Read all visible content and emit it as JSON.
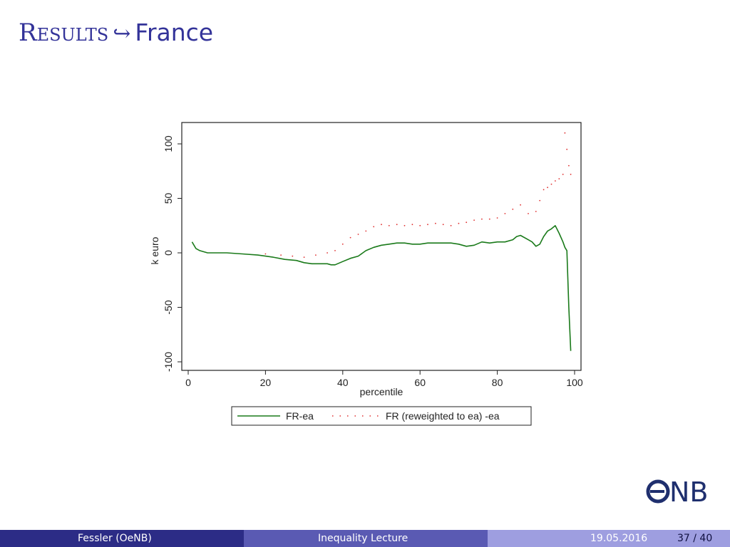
{
  "slide": {
    "title_main": "Results",
    "title_arrow": "↪",
    "title_sub": "France"
  },
  "footer": {
    "author": "Fessler  (OeNB)",
    "talk_title": "Inequality Lecture",
    "date": "19.05.2016",
    "page": "37 / 40"
  },
  "logo": {
    "text": "ONB",
    "icon": "oenb-euro-logo"
  },
  "colors": {
    "title": "#333399",
    "series_solid": "#1a7a1a",
    "series_dotted": "#e03030",
    "footer_dark": "#2c2c86",
    "footer_mid": "#5a5ab3",
    "footer_light": "#9e9ee0"
  },
  "chart_data": {
    "type": "line",
    "xlabel": "percentile",
    "ylabel": "k euro",
    "xlim": [
      0,
      100
    ],
    "ylim": [
      -105,
      115
    ],
    "xticks": [
      0,
      20,
      40,
      60,
      80,
      100
    ],
    "yticks": [
      -100,
      -50,
      0,
      50,
      100
    ],
    "legend_position": "bottom",
    "grid": false,
    "series": [
      {
        "name": "FR-ea",
        "style": "solid",
        "x": [
          1,
          2,
          3,
          5,
          8,
          10,
          14,
          18,
          20,
          22,
          25,
          28,
          30,
          32,
          34,
          36,
          37,
          38,
          40,
          42,
          44,
          46,
          48,
          50,
          52,
          54,
          56,
          58,
          60,
          62,
          64,
          66,
          68,
          70,
          72,
          74,
          76,
          78,
          80,
          82,
          84,
          85,
          86,
          88,
          89,
          90,
          91,
          92,
          93,
          94,
          95,
          96,
          97,
          97.5,
          98,
          98.5,
          99
        ],
        "y": [
          10,
          4,
          2,
          0,
          0,
          0,
          -1,
          -2,
          -3,
          -4,
          -6,
          -7,
          -9,
          -10,
          -10,
          -10,
          -11,
          -11,
          -8,
          -5,
          -3,
          2,
          5,
          7,
          8,
          9,
          9,
          8,
          8,
          9,
          9,
          9,
          9,
          8,
          6,
          7,
          10,
          9,
          10,
          10,
          12,
          15,
          16,
          12,
          10,
          6,
          8,
          15,
          20,
          22,
          25,
          18,
          10,
          5,
          2,
          -50,
          -90
        ]
      },
      {
        "name": "FR (reweighted to ea) -ea",
        "style": "dotted",
        "x": [
          20,
          24,
          27,
          30,
          33,
          36,
          38,
          40,
          42,
          44,
          46,
          48,
          50,
          52,
          54,
          56,
          58,
          60,
          62,
          64,
          66,
          68,
          70,
          72,
          74,
          76,
          78,
          80,
          82,
          84,
          86,
          88,
          90,
          91,
          92,
          93,
          94,
          95,
          96,
          97,
          97.5,
          98,
          98.5,
          99
        ],
        "y": [
          -1,
          -2,
          -3,
          -4,
          -2,
          0,
          2,
          8,
          14,
          17,
          20,
          24,
          26,
          25,
          26,
          25,
          26,
          25,
          26,
          27,
          26,
          25,
          27,
          28,
          30,
          31,
          31,
          32,
          36,
          40,
          44,
          36,
          38,
          48,
          58,
          60,
          63,
          66,
          68,
          72,
          110,
          95,
          80,
          72
        ]
      }
    ]
  }
}
